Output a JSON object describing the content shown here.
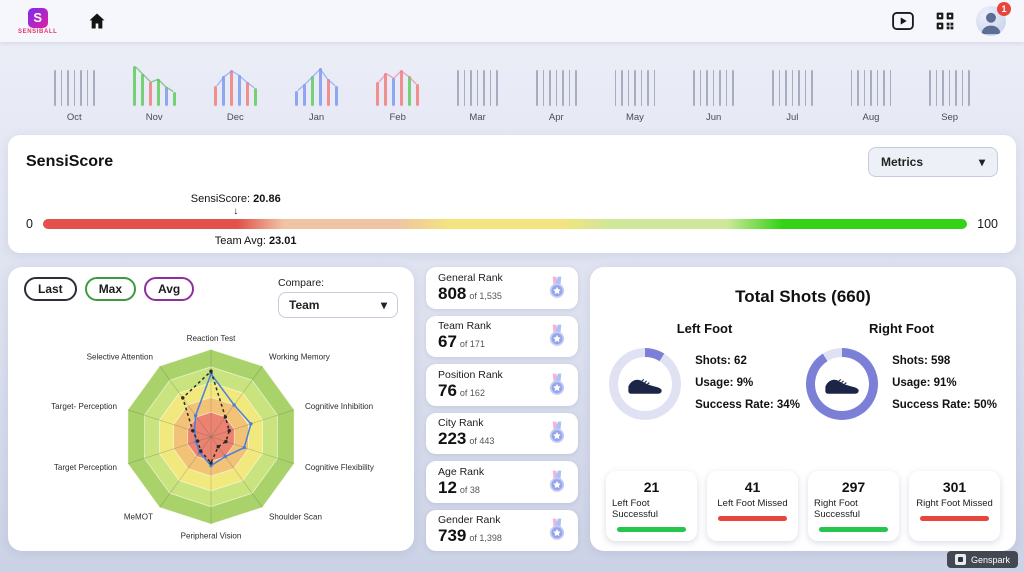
{
  "topbar": {
    "brand": "SENSIBALL",
    "notification_count": "1"
  },
  "timeline": {
    "inactive_bar_color": "#969cb0",
    "inactive_bar_count": 7,
    "inactive_bar_height": 36,
    "active_months": [
      "Nov",
      "Dec",
      "Jan",
      "Feb"
    ],
    "months": [
      {
        "label": "Oct",
        "active": false
      },
      {
        "label": "Nov",
        "active": true,
        "bar_colors": [
          "#6fcf6f",
          "#6fcf6f",
          "#f08a8a",
          "#6fcf6f",
          "#8aa3f0",
          "#6fcf6f"
        ],
        "bar_heights": [
          40,
          32,
          24,
          27,
          19,
          14
        ],
        "line_color": "#58b658"
      },
      {
        "label": "Dec",
        "active": true,
        "bar_colors": [
          "#f08a8a",
          "#8aa3f0",
          "#f08a8a",
          "#8aa3f0",
          "#f08a8a",
          "#6fcf6f"
        ],
        "bar_heights": [
          20,
          30,
          36,
          31,
          24,
          18
        ],
        "line_color": "#7f9bed"
      },
      {
        "label": "Jan",
        "active": true,
        "bar_colors": [
          "#8aa3f0",
          "#8aa3f0",
          "#6fcf6f",
          "#8aa3f0",
          "#f08a8a",
          "#8aa3f0"
        ],
        "bar_heights": [
          15,
          22,
          30,
          38,
          27,
          20
        ],
        "line_color": "#7f9bed"
      },
      {
        "label": "Feb",
        "active": true,
        "bar_colors": [
          "#f08a8a",
          "#f08a8a",
          "#8aa3f0",
          "#f08a8a",
          "#6fcf6f",
          "#f08a8a"
        ],
        "bar_heights": [
          24,
          33,
          28,
          36,
          30,
          22
        ],
        "line_color": "#ec7ea4"
      },
      {
        "label": "Mar",
        "active": false
      },
      {
        "label": "Apr",
        "active": false
      },
      {
        "label": "May",
        "active": false
      },
      {
        "label": "Jun",
        "active": false
      },
      {
        "label": "Jul",
        "active": false
      },
      {
        "label": "Aug",
        "active": false
      },
      {
        "label": "Sep",
        "active": false
      }
    ]
  },
  "sensiscore": {
    "title": "SensiScore",
    "metrics_button": "Metrics",
    "score_prefix": "SensiScore:",
    "score_value": "20.86",
    "avg_prefix": "Team Avg:",
    "avg_value": "23.01",
    "scale_min": "0",
    "scale_max": "100",
    "score_pct": 20.86,
    "avg_pct": 23.01,
    "bar_gradient": [
      {
        "color": "#e2514a",
        "from": 0,
        "to": 21
      },
      {
        "color": "#efc3a3",
        "from": 26,
        "to": 38
      },
      {
        "color": "#f3e47f",
        "from": 44,
        "to": 56
      },
      {
        "color": "#cde89b",
        "from": 62,
        "to": 74
      },
      {
        "color": "#35d217",
        "from": 80,
        "to": 100
      }
    ]
  },
  "radar_panel": {
    "buttons": [
      {
        "label": "Last",
        "color": "#2d2d3a"
      },
      {
        "label": "Max",
        "color": "#3f9a3f"
      },
      {
        "label": "Avg",
        "color": "#8e2f9e"
      }
    ],
    "compare_label": "Compare:",
    "compare_value": "Team"
  },
  "ranks": [
    {
      "label": "General Rank",
      "value": "808",
      "of": "of 1,535"
    },
    {
      "label": "Team Rank",
      "value": "67",
      "of": "of 171"
    },
    {
      "label": "Position Rank",
      "value": "76",
      "of": "of 162"
    },
    {
      "label": "City Rank",
      "value": "223",
      "of": "of 443"
    },
    {
      "label": "Age Rank",
      "value": "12",
      "of": "of 38"
    },
    {
      "label": "Gender Rank",
      "value": "739",
      "of": "of 1,398"
    }
  ],
  "shots": {
    "title": "Total Shots (660)",
    "donut_color": "#7b80d6",
    "donut_track": "#e0e2f4",
    "left": {
      "title": "Left Foot",
      "lines": [
        "Shots: 62",
        "Usage: 9%",
        "Success Rate: 34%"
      ],
      "usage_pct": 9
    },
    "right": {
      "title": "Right Foot",
      "lines": [
        "Shots: 598",
        "Usage: 91%",
        "Success Rate: 50%"
      ],
      "usage_pct": 91
    },
    "cards": [
      {
        "value": "21",
        "label": "Left Foot Successful",
        "bar_color": "#26c54d"
      },
      {
        "value": "41",
        "label": "Left Foot Missed",
        "bar_color": "#e8453c"
      },
      {
        "value": "297",
        "label": "Right Foot Successful",
        "bar_color": "#26c54d"
      },
      {
        "value": "301",
        "label": "Right Foot Missed",
        "bar_color": "#e8453c"
      }
    ]
  },
  "chart_data": [
    {
      "type": "radar",
      "axes": [
        "Reaction Test",
        "Working Memory",
        "Cognitive Inhibition",
        "Cognitive Flexibility",
        "Shoulder Scan",
        "Peripheral Vision",
        "MeMOT",
        "Target Perception",
        "Target- Perception",
        "Selective Attention"
      ],
      "max": 100,
      "rings": [
        {
          "r": 1.0,
          "color": "#a9d26a"
        },
        {
          "r": 0.8,
          "color": "#c9e47e"
        },
        {
          "r": 0.62,
          "color": "#f2e97e"
        },
        {
          "r": 0.45,
          "color": "#f2c377"
        },
        {
          "r": 0.28,
          "color": "#ec8270"
        }
      ],
      "series": [
        {
          "name": "Last",
          "color": "#4a80d9",
          "dashed": false,
          "values": [
            72,
            45,
            48,
            40,
            28,
            33,
            22,
            18,
            20,
            30
          ]
        },
        {
          "name": "Avg",
          "color": "#2a2a2a",
          "dashed": true,
          "values": [
            75,
            28,
            22,
            18,
            14,
            30,
            20,
            16,
            22,
            55
          ]
        }
      ]
    },
    {
      "type": "donut",
      "label": "Left Foot Usage",
      "value": 9,
      "unit": "%"
    },
    {
      "type": "donut",
      "label": "Right Foot Usage",
      "value": 91,
      "unit": "%"
    },
    {
      "type": "gauge",
      "label": "SensiScore",
      "value": 20.86,
      "team_avg": 23.01,
      "range": [
        0,
        100
      ]
    }
  ],
  "watermark": "Genspark"
}
